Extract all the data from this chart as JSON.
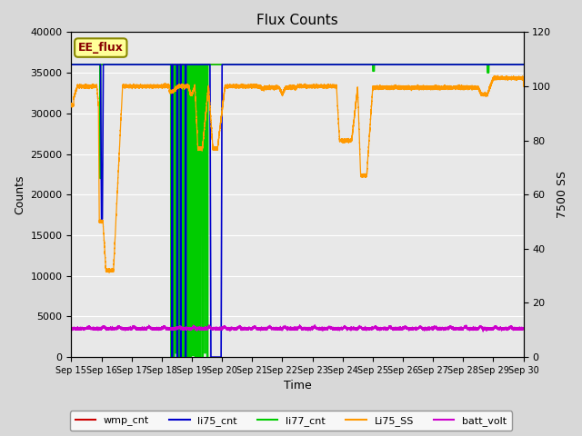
{
  "title": "Flux Counts",
  "xlabel": "Time",
  "ylabel_left": "Counts",
  "ylabel_right": "7500 SS",
  "annotation_text": "EE_flux",
  "annotation_bg": "#ffff99",
  "annotation_border": "#888800",
  "annotation_fg": "#880000",
  "ylim_left": [
    0,
    40000
  ],
  "ylim_right": [
    0,
    120
  ],
  "xtick_labels": [
    "Sep 15",
    "Sep 16",
    "Sep 17",
    "Sep 18",
    "Sep 19",
    "Sep 20",
    "Sep 21",
    "Sep 22",
    "Sep 23",
    "Sep 24",
    "Sep 25",
    "Sep 26",
    "Sep 27",
    "Sep 28",
    "Sep 29",
    "Sep 30"
  ],
  "ytick_left": [
    0,
    5000,
    10000,
    15000,
    20000,
    25000,
    30000,
    35000,
    40000
  ],
  "ytick_right": [
    0,
    20,
    40,
    60,
    80,
    100,
    120
  ],
  "bg_color": "#e8e8e8",
  "grid_color": "#ffffff",
  "legend_entries": [
    "wmp_cnt",
    "li75_cnt",
    "li77_cnt",
    "Li75_SS",
    "batt_volt"
  ],
  "legend_colors": [
    "#cc0000",
    "#0000cc",
    "#00cc00",
    "#ff9900",
    "#cc00cc"
  ],
  "figsize": [
    6.4,
    4.8
  ],
  "dpi": 100
}
